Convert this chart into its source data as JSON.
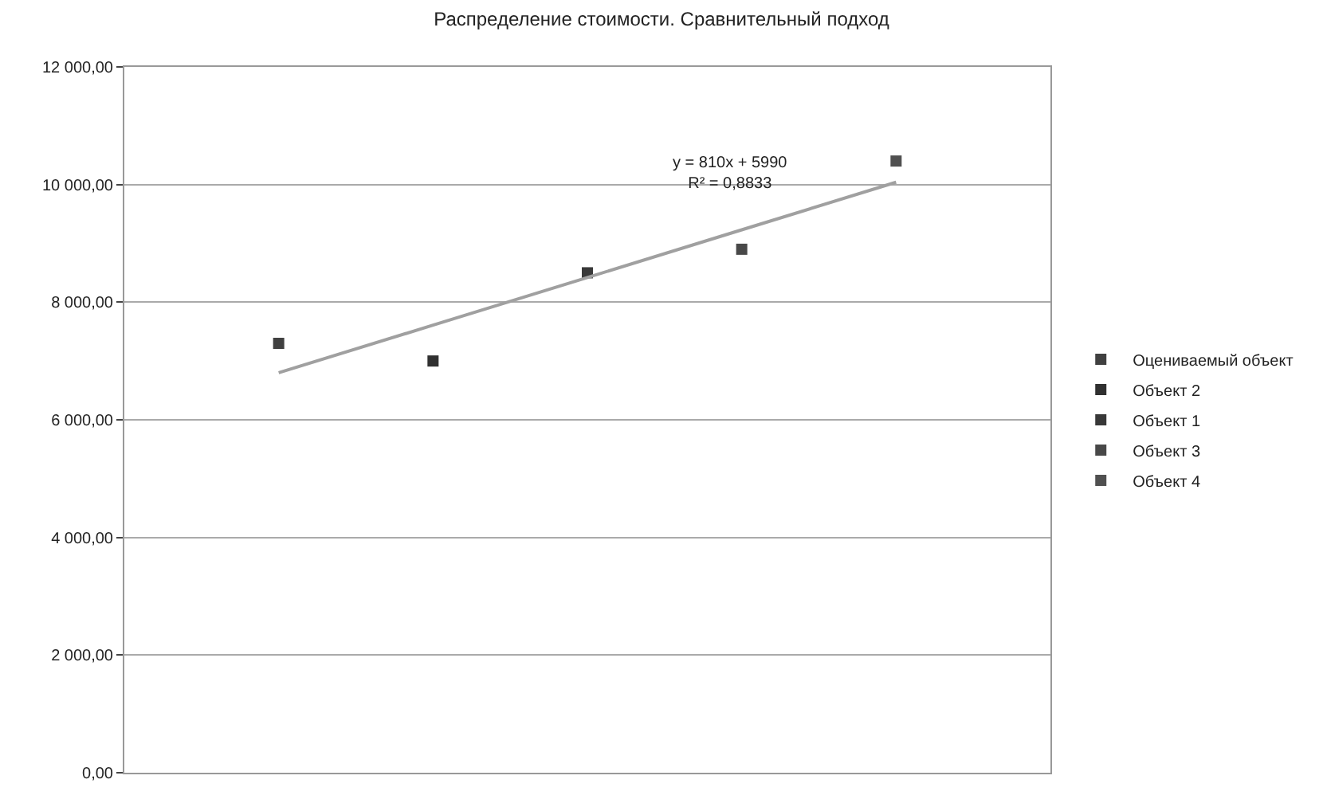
{
  "chart_data": {
    "type": "scatter",
    "title": "Распределение стоимости. Сравнительный подход",
    "categories": [
      null,
      null,
      null,
      null,
      null
    ],
    "ylim": [
      0,
      12000
    ],
    "yticks": [
      {
        "value": 0,
        "label": "0,00"
      },
      {
        "value": 2000,
        "label": "2 000,00"
      },
      {
        "value": 4000,
        "label": "4 000,00"
      },
      {
        "value": 6000,
        "label": "6 000,00"
      },
      {
        "value": 8000,
        "label": "8 000,00"
      },
      {
        "value": 10000,
        "label": "10 000,00"
      },
      {
        "value": 12000,
        "label": "12 000,00"
      }
    ],
    "tick_labels": "y",
    "grid": "y",
    "legend": "right",
    "marker": "square",
    "annotations": [
      "y = 810x + 5990\nR² = 0,8833"
    ],
    "series": [
      {
        "name": "Оцениваемый объект",
        "color": "#404040",
        "values": [
          7300,
          null,
          null,
          null,
          null
        ]
      },
      {
        "name": "Объект 2",
        "color": "#303030",
        "values": [
          null,
          7000,
          null,
          null,
          null
        ]
      },
      {
        "name": "Объект 1",
        "color": "#383838",
        "values": [
          null,
          null,
          8500,
          null,
          null
        ]
      },
      {
        "name": "Объект 3",
        "color": "#484848",
        "values": [
          null,
          null,
          null,
          8900,
          null
        ]
      },
      {
        "name": "Объект 4",
        "color": "#505050",
        "values": [
          null,
          null,
          null,
          null,
          10400
        ]
      },
      {
        "type": "line",
        "marker": "none",
        "color": "#a0a0a0",
        "values": [
          6800,
          7610,
          8420,
          9230,
          10040
        ]
      }
    ]
  }
}
